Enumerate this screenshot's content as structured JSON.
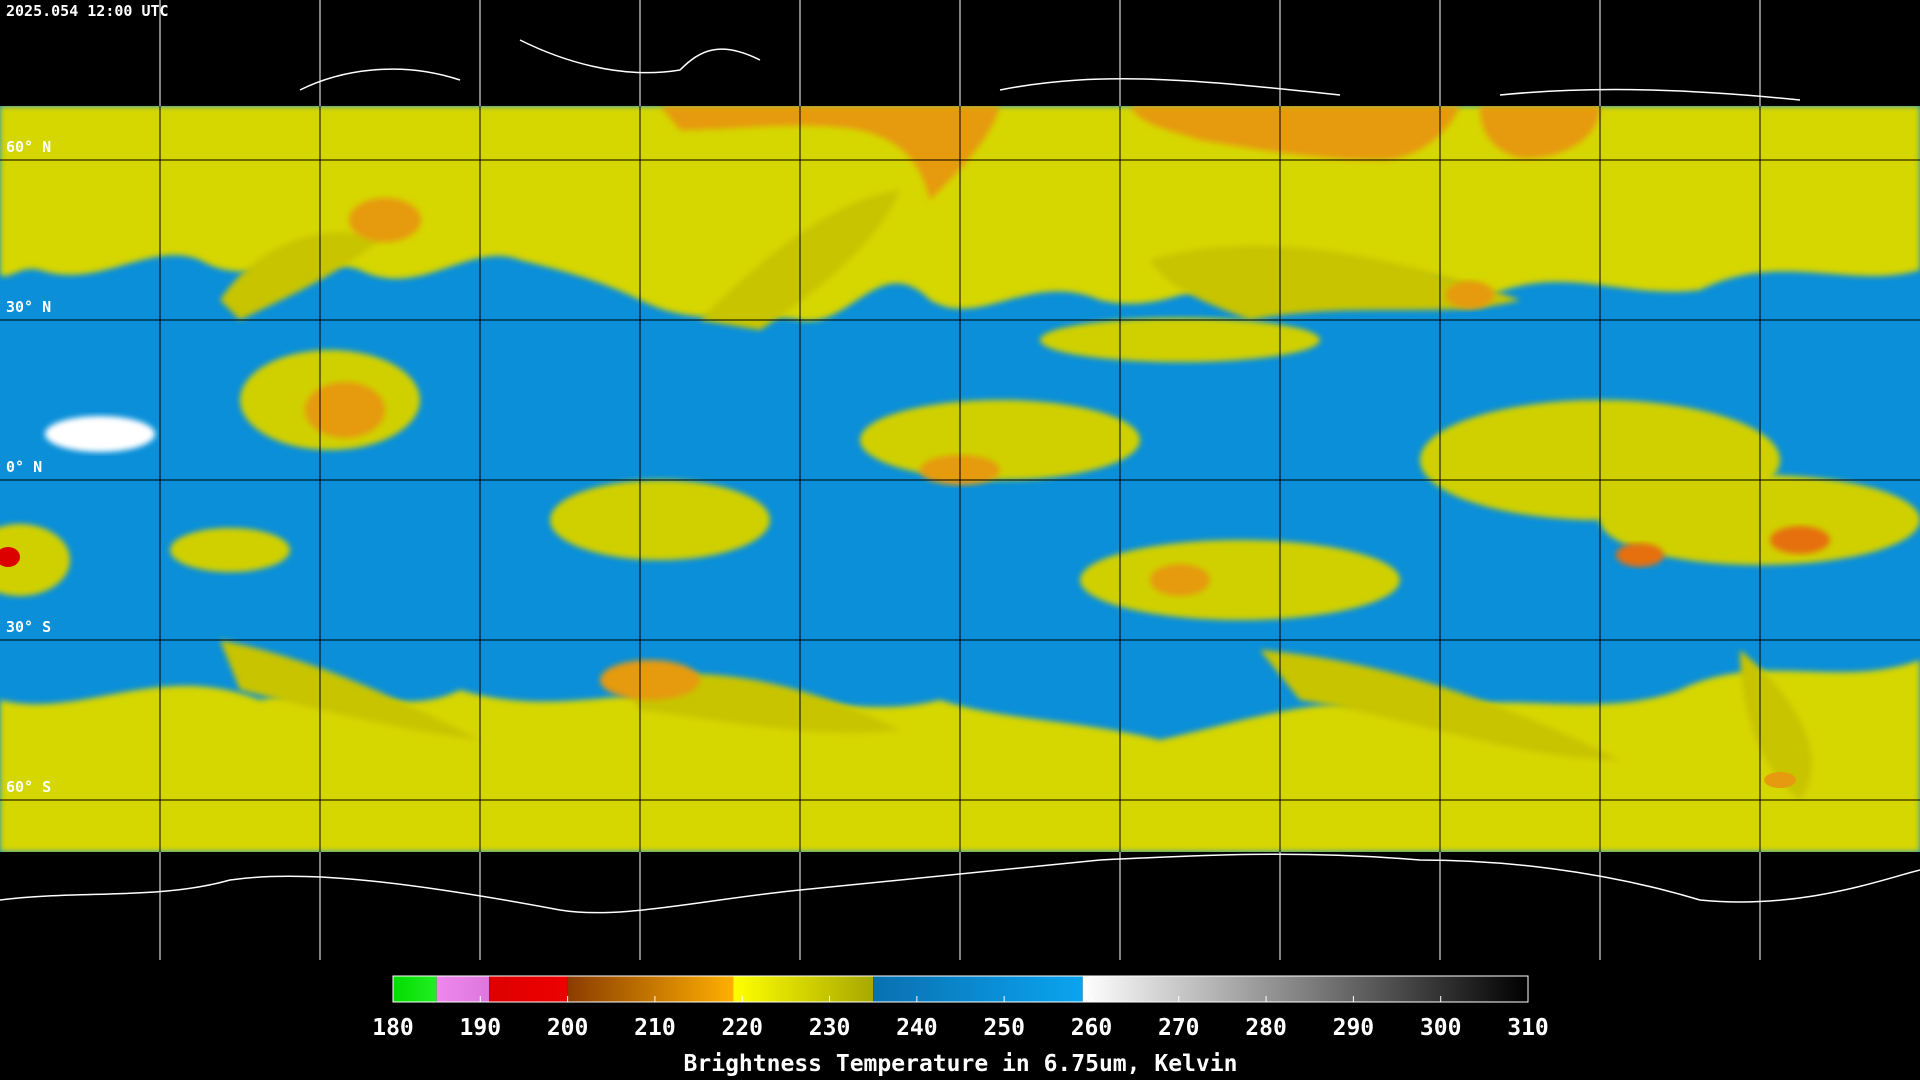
{
  "header": {
    "timestamp": "2025.054 12:00 UTC"
  },
  "map": {
    "lat_ticks": [
      {
        "value": 60,
        "label": "60° N"
      },
      {
        "value": 30,
        "label": "30° N"
      },
      {
        "value": 0,
        "label": "0° N"
      },
      {
        "value": -30,
        "label": "30° S"
      },
      {
        "value": -60,
        "label": "60° S"
      }
    ]
  },
  "colorbar": {
    "title": "Brightness Temperature in 6.75um, Kelvin",
    "range": [
      180,
      310
    ],
    "ticks": [
      180,
      190,
      200,
      210,
      220,
      230,
      240,
      250,
      260,
      270,
      280,
      290,
      300,
      310
    ],
    "segments": [
      {
        "from": 180,
        "to": 185,
        "color": "#00dd00",
        "color_end": "#22ee22"
      },
      {
        "from": 185,
        "to": 191,
        "color": "#ee88ee",
        "color_end": "#dd77dd"
      },
      {
        "from": 191,
        "to": 200,
        "color": "#dd0000",
        "color_end": "#ee0000"
      },
      {
        "from": 200,
        "to": 219,
        "color": "#8a3c00",
        "color_end": "#ffb000"
      },
      {
        "from": 219,
        "to": 235,
        "color": "#ffff00",
        "color_end": "#a8a800"
      },
      {
        "from": 235,
        "to": 259,
        "color": "#0a70b0",
        "color_end": "#0aa4f0"
      },
      {
        "from": 259,
        "to": 310,
        "color": "#ffffff",
        "color_end": "#000000"
      }
    ]
  }
}
